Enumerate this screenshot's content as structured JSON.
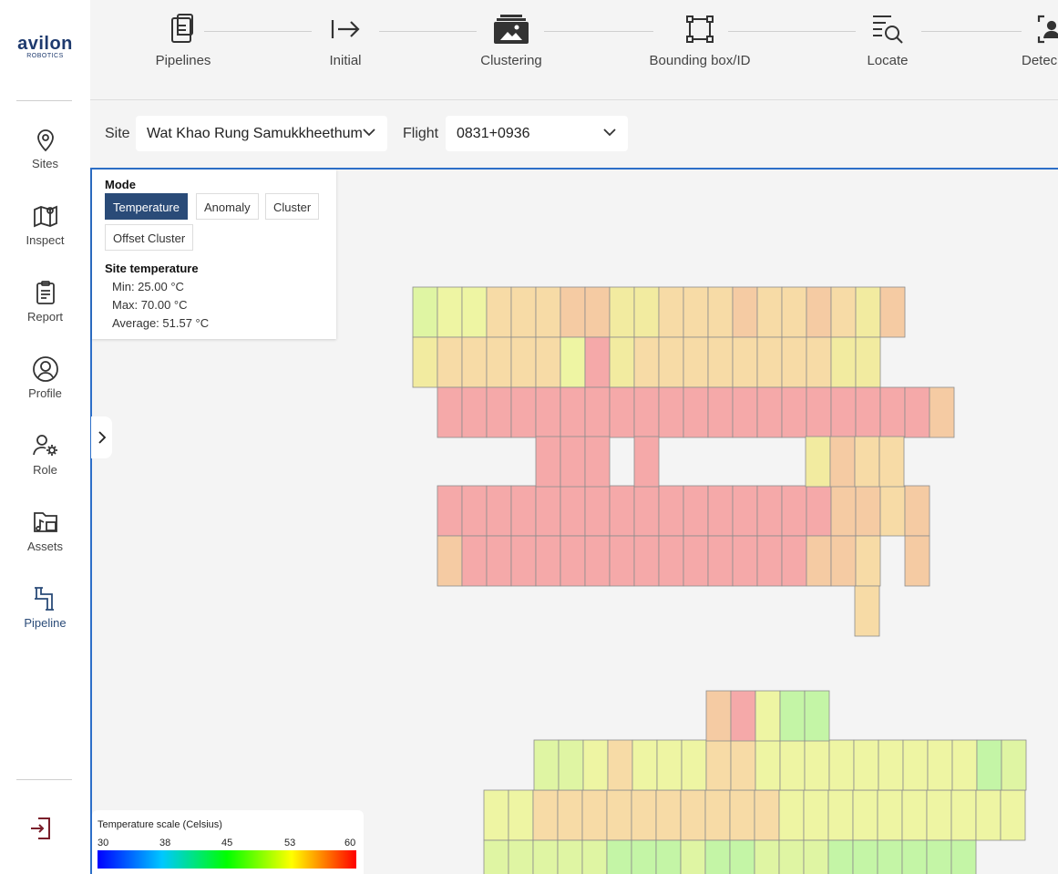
{
  "brand": {
    "name": "avilon",
    "sub": "ROBOTICS"
  },
  "sidebar": {
    "items": [
      {
        "label": "Sites",
        "icon": "map-pin-icon"
      },
      {
        "label": "Inspect",
        "icon": "map-icon"
      },
      {
        "label": "Report",
        "icon": "clipboard-icon"
      },
      {
        "label": "Profile",
        "icon": "user-circle-icon"
      },
      {
        "label": "Role",
        "icon": "user-gear-icon"
      },
      {
        "label": "Assets",
        "icon": "folder-media-icon"
      },
      {
        "label": "Pipeline",
        "icon": "pipe-icon",
        "active": true
      }
    ],
    "logout_icon": "logout-icon"
  },
  "stepper": {
    "steps": [
      {
        "label": "Pipelines",
        "icon": "clipboard-list-icon"
      },
      {
        "label": "Initial",
        "icon": "arrow-right-bar-icon"
      },
      {
        "label": "Clustering",
        "icon": "image-cards-icon"
      },
      {
        "label": "Bounding box/ID",
        "icon": "bounding-box-icon"
      },
      {
        "label": "Locate",
        "icon": "list-search-icon"
      },
      {
        "label": "Detec",
        "icon": "detect-icon"
      }
    ]
  },
  "filters": {
    "site_label": "Site",
    "site_value": "Wat Khao Rung Samukkheethum",
    "flight_label": "Flight",
    "flight_value": "0831+0936"
  },
  "mode_panel": {
    "title": "Mode",
    "modes": [
      "Temperature",
      "Anomaly",
      "Cluster",
      "Offset Cluster"
    ],
    "active_mode": "Temperature",
    "temp_title": "Site temperature",
    "min": "Min: 25.00 °C",
    "max": "Max: 70.00 °C",
    "avg": "Average: 51.57 °C"
  },
  "legend": {
    "title": "Temperature scale (Celsius)",
    "ticks": [
      "30",
      "38",
      "45",
      "53",
      "60"
    ]
  },
  "colors": {
    "accent": "#2a4b78",
    "map_border": "#2d6fc8",
    "panel_hot": "#f5a9a9",
    "panel_orange": "#f5cba3",
    "panel_peach": "#f7dba6",
    "panel_yellow": "#f2eba0",
    "panel_lightyellow": "#eef5a3",
    "panel_lime": "#dff5a3",
    "panel_green": "#c4f5a6"
  }
}
